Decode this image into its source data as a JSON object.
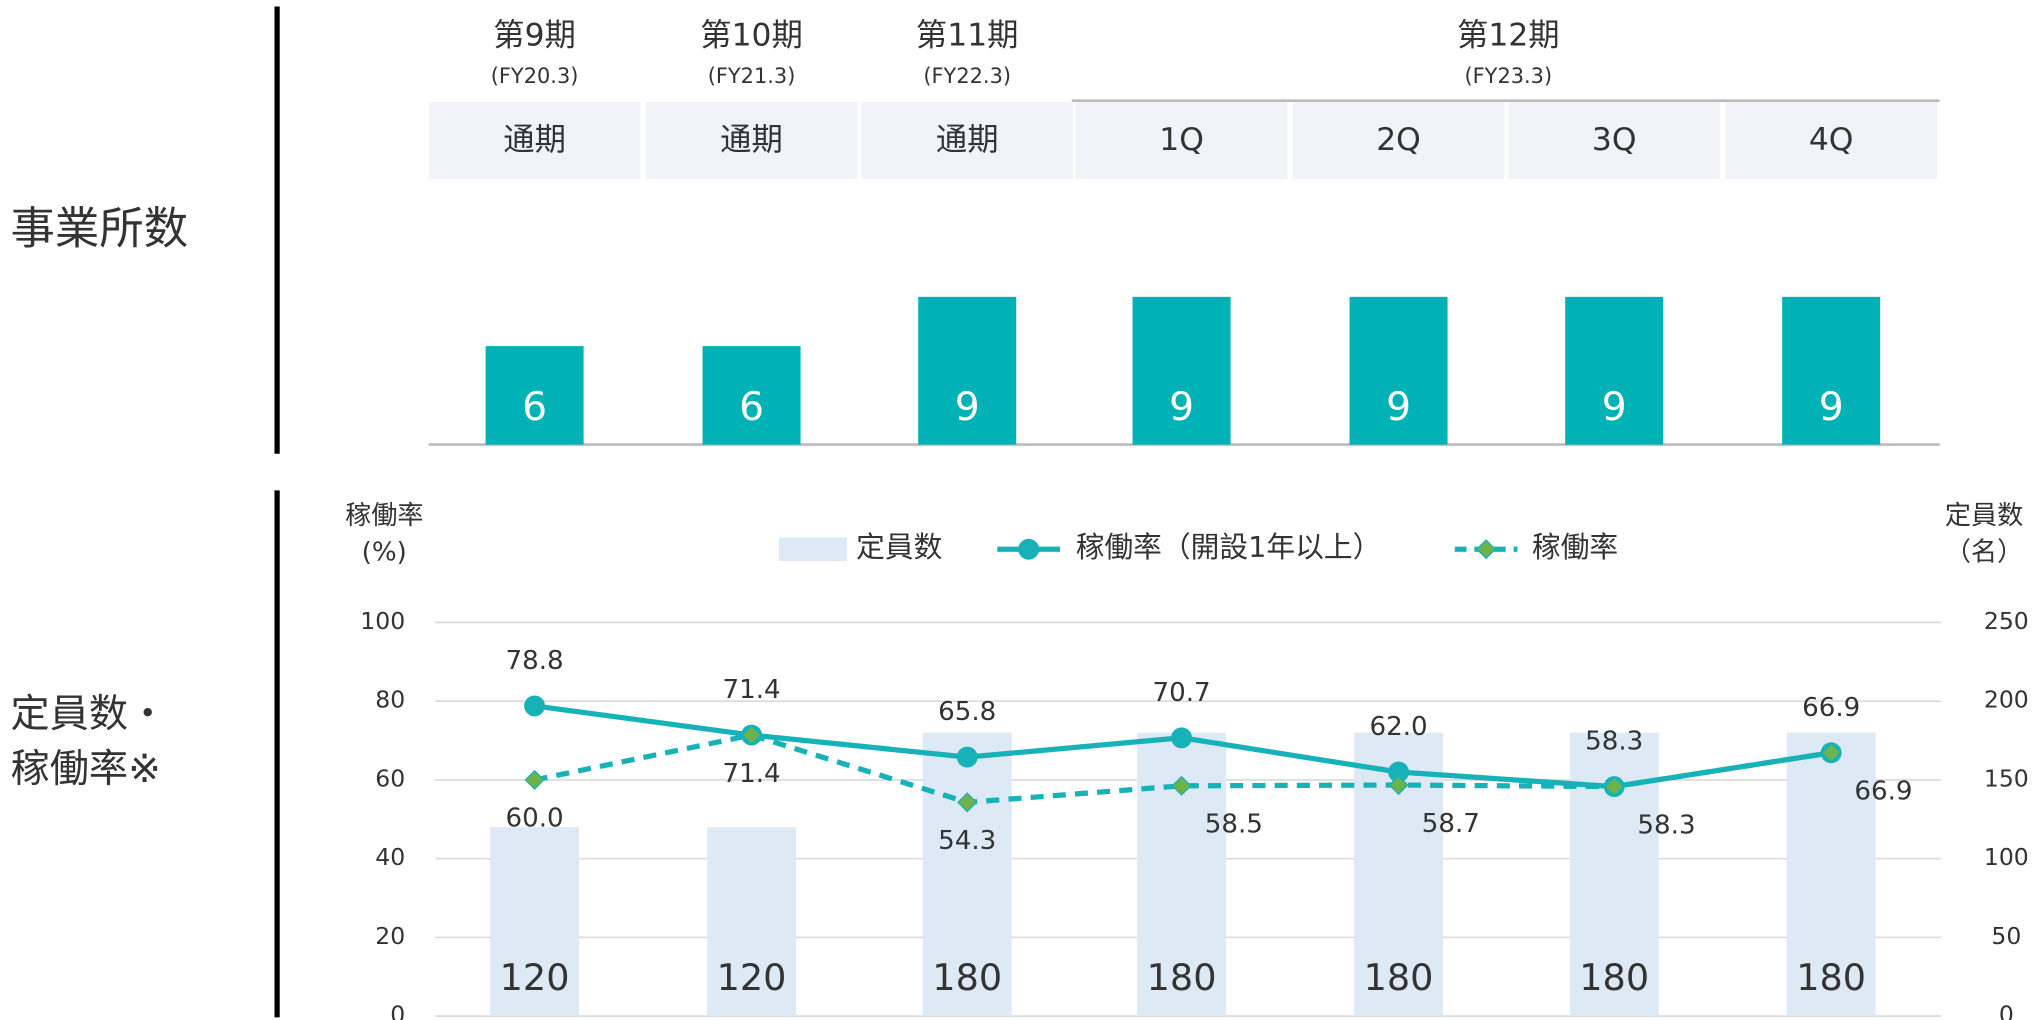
{
  "header": {
    "periods": [
      {
        "label": "第9期",
        "fy": "(FY20.3)"
      },
      {
        "label": "第10期",
        "fy": "(FY21.3)"
      },
      {
        "label": "第11期",
        "fy": "(FY22.3)"
      },
      {
        "label": "第12期",
        "fy": "(FY23.3)"
      }
    ]
  },
  "chart_data": [
    {
      "type": "bar",
      "title": "事業所数",
      "categories": [
        "通期",
        "通期",
        "通期",
        "1Q",
        "2Q",
        "3Q",
        "4Q"
      ],
      "values": [
        6,
        6,
        9,
        9,
        9,
        9,
        9
      ],
      "color": "#00b2b5"
    },
    {
      "type": "combo",
      "title": [
        "定員数・",
        "稼働率※"
      ],
      "y_label": [
        "稼働率",
        "(%)"
      ],
      "y2_label": [
        "定員数",
        "（名）"
      ],
      "ylim": [
        0,
        100
      ],
      "yticks": [
        0,
        20,
        40,
        60,
        80,
        100
      ],
      "y2lim": [
        0,
        250
      ],
      "y2ticks": [
        0,
        50,
        100,
        150,
        200,
        250
      ],
      "grid": true,
      "series": [
        {
          "name": "定員数",
          "type": "bar",
          "axis": "y2",
          "color": "#dde9f5",
          "values": [
            120,
            120,
            180,
            180,
            180,
            180,
            180
          ]
        },
        {
          "name": "稼働率（開設1年以上）",
          "type": "line",
          "color": "#17b2b8",
          "marker": "circle",
          "values": [
            78.8,
            71.4,
            65.8,
            70.7,
            62.0,
            58.3,
            66.9
          ],
          "value_labels": [
            "78.8",
            "71.4",
            "65.8",
            "70.7",
            "62.0",
            "58.3",
            "66.9"
          ]
        },
        {
          "name": "稼働率",
          "type": "line",
          "dashed": true,
          "color": "#17b2b8",
          "marker": "diamond",
          "marker_color": "#6db34a",
          "values": [
            60.0,
            71.4,
            54.3,
            58.5,
            58.7,
            58.3,
            66.9
          ],
          "value_labels": [
            "60.0",
            "71.4",
            "54.3",
            "58.5",
            "58.7",
            "58.3",
            "66.9"
          ]
        }
      ]
    }
  ]
}
